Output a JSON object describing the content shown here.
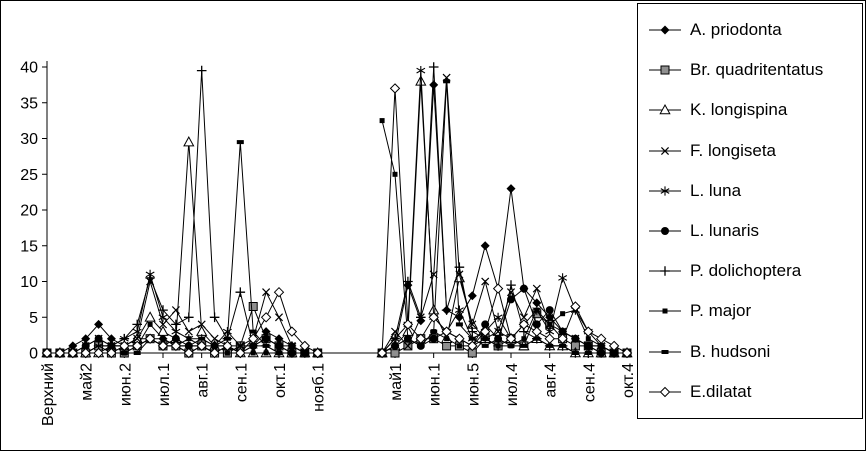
{
  "chart_data": {
    "type": "line",
    "title": "",
    "xlabel": "",
    "ylabel": "",
    "ylim": [
      0,
      40
    ],
    "yticks": [
      0,
      5,
      10,
      15,
      20,
      25,
      30,
      35,
      40
    ],
    "grid": false,
    "legend_position": "right",
    "categories": [
      "Верхний",
      "",
      "",
      "май2",
      "",
      "",
      "июн.2",
      "",
      "",
      "июл.1",
      "",
      "",
      "авг.1",
      "",
      "",
      "сен.1",
      "",
      "",
      "окт.1",
      "",
      "",
      "нояб.1",
      "",
      "",
      "",
      "",
      "",
      "май1",
      "",
      "",
      "июн.1",
      "",
      "",
      "июн.5",
      "",
      "",
      "июл.4",
      "",
      "",
      "авг.4",
      "",
      "",
      "сен.4",
      "",
      "",
      "окт.4"
    ],
    "series": [
      {
        "name": "A. priodonta",
        "marker": "diamond",
        "values": [
          0,
          0,
          1,
          2,
          4,
          2,
          1,
          2,
          2,
          2,
          1,
          1,
          1,
          0,
          1,
          0,
          1,
          3,
          2,
          1,
          0,
          0,
          null,
          null,
          null,
          null,
          0,
          1,
          9.5,
          4.5,
          37.5,
          6,
          5,
          8,
          15,
          9,
          23,
          9,
          7,
          5,
          3,
          2,
          1,
          1,
          0,
          0
        ]
      },
      {
        "name": "Br. quadritentatus",
        "marker": "square-gray",
        "values": [
          0,
          0,
          0,
          0,
          1,
          0,
          0,
          1,
          2,
          1,
          1,
          0,
          1,
          0,
          0,
          1,
          6.5,
          2,
          1,
          0,
          0,
          0,
          null,
          null,
          null,
          null,
          0,
          0,
          1,
          2,
          2,
          1,
          1,
          0,
          2,
          1,
          2,
          1,
          5.5,
          4,
          2,
          1,
          1,
          0,
          0,
          0
        ]
      },
      {
        "name": "K. longispina",
        "marker": "triangle-open",
        "values": [
          0,
          0,
          0,
          0,
          0,
          1,
          1,
          2,
          5,
          3,
          2,
          29.5,
          3,
          1,
          1,
          0,
          0,
          0,
          0,
          0,
          0,
          0,
          null,
          null,
          null,
          null,
          0,
          1,
          3,
          38,
          6,
          2,
          10.5,
          4,
          2,
          3,
          2,
          1,
          2,
          1,
          1,
          0,
          0,
          0,
          0,
          0
        ]
      },
      {
        "name": "F. longiseta",
        "marker": "x",
        "values": [
          0,
          0,
          0,
          1,
          2,
          1,
          1,
          2,
          10,
          4,
          6,
          3,
          4,
          2,
          1,
          1,
          2,
          8.5,
          5,
          1,
          0,
          0,
          null,
          null,
          null,
          null,
          0,
          3,
          1,
          5,
          11,
          38.5,
          11,
          4,
          10,
          3,
          8.5,
          5,
          9,
          4,
          3,
          2,
          1,
          1,
          0,
          0
        ]
      },
      {
        "name": "L. luna",
        "marker": "asterisk",
        "values": [
          0,
          0,
          0,
          0,
          1,
          1,
          2,
          3,
          11,
          5,
          3,
          2,
          2,
          1,
          3,
          1,
          1,
          2,
          1,
          1,
          0,
          0,
          null,
          null,
          null,
          null,
          0,
          2,
          4,
          39.5,
          5,
          3,
          6,
          2,
          3,
          5,
          2,
          4,
          6,
          3,
          10.5,
          6,
          3,
          1,
          0,
          0
        ]
      },
      {
        "name": "L. lunaris",
        "marker": "circle",
        "values": [
          0,
          0,
          0,
          1,
          2,
          1,
          1,
          1,
          2,
          1,
          2,
          1,
          1,
          1,
          1,
          0,
          1,
          2,
          1,
          0,
          0,
          0,
          null,
          null,
          null,
          null,
          0,
          1,
          2,
          1,
          2,
          3,
          2,
          1,
          4,
          2,
          7.5,
          9,
          4,
          6,
          3,
          2,
          1,
          0,
          0,
          0
        ]
      },
      {
        "name": "P. dolichoptera",
        "marker": "plus",
        "values": [
          0,
          0,
          0,
          0,
          1,
          1,
          2,
          4,
          10.5,
          6,
          4,
          5,
          39.5,
          5,
          2,
          8.5,
          1,
          1,
          0,
          0,
          0,
          0,
          null,
          null,
          null,
          null,
          0,
          2,
          10,
          5,
          40,
          6,
          12,
          3,
          2,
          1,
          9.5,
          3,
          2,
          1,
          1,
          0,
          0,
          0,
          0,
          0
        ]
      },
      {
        "name": "P. major",
        "marker": "square-small",
        "values": [
          0,
          0,
          0,
          0,
          0,
          0,
          0,
          1,
          4,
          2,
          1,
          2,
          1,
          0,
          0,
          0,
          0,
          0,
          0,
          0,
          0,
          0,
          null,
          null,
          null,
          null,
          32.5,
          25,
          2,
          1,
          3,
          2,
          1,
          1,
          2,
          1,
          1,
          2,
          6,
          4,
          5.5,
          6,
          2,
          1,
          0,
          0
        ]
      },
      {
        "name": "B. hudsoni",
        "marker": "dash",
        "values": [
          0,
          0,
          0,
          0,
          0,
          0,
          0,
          0,
          2,
          1,
          1,
          1,
          2,
          1,
          2,
          29.5,
          3,
          1,
          0,
          0,
          0,
          0,
          null,
          null,
          null,
          null,
          0,
          1,
          2,
          1,
          3,
          38,
          4,
          2,
          1,
          2,
          1,
          1,
          2,
          1,
          1,
          0,
          0,
          0,
          0,
          0
        ]
      },
      {
        "name": "E.dilatat",
        "marker": "diamond-open",
        "values": [
          0,
          0,
          0,
          0,
          0,
          0,
          1,
          1,
          2,
          1,
          1,
          0,
          1,
          0,
          1,
          0,
          2,
          5,
          8.5,
          3,
          1,
          0,
          null,
          null,
          null,
          null,
          0,
          37,
          4,
          2,
          5,
          3,
          2,
          1,
          3,
          9,
          2,
          4,
          3,
          2,
          2,
          6.5,
          3,
          2,
          1,
          0
        ]
      }
    ]
  },
  "colors": {
    "line": "#000000",
    "gray_marker": "#8f8f8f",
    "background": "#ffffff"
  }
}
